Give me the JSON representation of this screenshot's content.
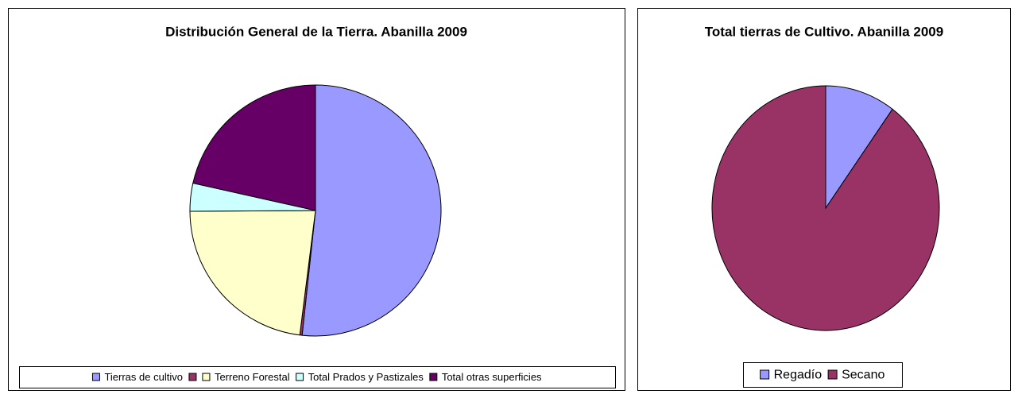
{
  "chart_data": [
    {
      "type": "pie",
      "title": "Distribución General de la Tierra. Abanilla 2009",
      "categories": [
        "Tierras de cultivo",
        null,
        "Terreno Forestal",
        "Total Prados y Pastizales",
        "Total otras superficies"
      ],
      "values": [
        51.7,
        0.3,
        22.9,
        3.6,
        21.5
      ],
      "colors": [
        "#9999ff",
        "#993366",
        "#ffffcc",
        "#ccffff",
        "#660066"
      ],
      "legend": "bottom"
    },
    {
      "type": "pie",
      "title": "Total tierras de Cultivo. Abanilla 2009",
      "categories": [
        "Regadío",
        "Secano"
      ],
      "values": [
        10,
        90
      ],
      "colors": [
        "#9999ff",
        "#993366"
      ],
      "legend": "bottom"
    }
  ]
}
